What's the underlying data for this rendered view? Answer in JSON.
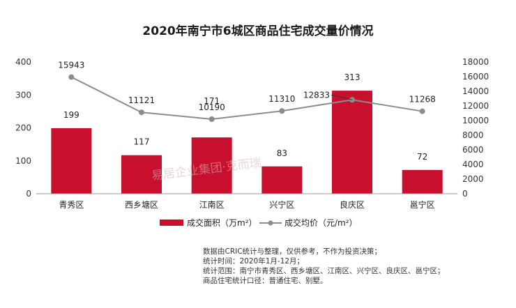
{
  "chart_data": {
    "type": "bar",
    "title": "2020年南宁市6城区商品住宅成交量价情况",
    "categories": [
      "青秀区",
      "西乡塘区",
      "江南区",
      "兴宁区",
      "良庆区",
      "邕宁区"
    ],
    "series": [
      {
        "name": "成交面积（万m²）",
        "type": "bar",
        "axis": "left",
        "color": "#c8102e",
        "values": [
          199,
          117,
          171,
          83,
          313,
          72
        ]
      },
      {
        "name": "成交均价（元/m²）",
        "type": "line",
        "axis": "right",
        "color": "#8c8c8c",
        "values": [
          15943,
          11121,
          10190,
          11310,
          12833,
          11268
        ]
      }
    ],
    "y_left": {
      "min": 0,
      "max": 400,
      "ticks": [
        0,
        100,
        200,
        300,
        400
      ]
    },
    "y_right": {
      "min": 0,
      "max": 18000,
      "ticks": [
        0,
        2000,
        4000,
        6000,
        8000,
        10000,
        12000,
        14000,
        16000,
        18000
      ]
    },
    "legend_position": "bottom"
  },
  "watermark": "易居企业集团·克而瑞",
  "notes": [
    "数据由CRIC统计与整理，仅供参考，不作为投资决策；",
    "统计时间：2020年1月-12月；",
    "统计范围：南宁市青秀区、西乡塘区、江南区、兴宁区、良庆区、邕宁区；",
    "商品住宅统计口径：普通住宅、别墅。"
  ]
}
